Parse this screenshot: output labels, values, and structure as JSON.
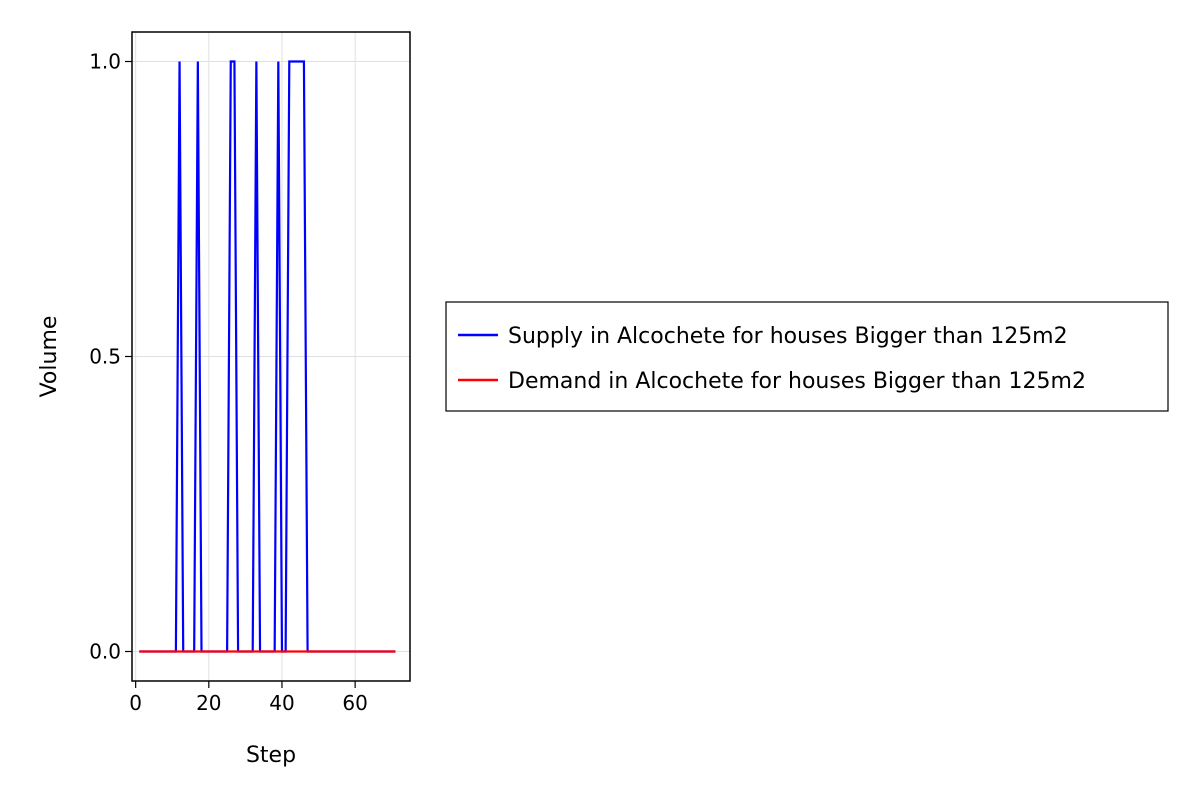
{
  "chart_data": {
    "type": "line",
    "title": "",
    "xlabel": "Step",
    "ylabel": "Volume",
    "xlim": [
      -1,
      75
    ],
    "ylim": [
      -0.05,
      1.05
    ],
    "x_ticks": [
      {
        "value": 0,
        "label": "0"
      },
      {
        "value": 20,
        "label": "20"
      },
      {
        "value": 40,
        "label": "40"
      },
      {
        "value": 60,
        "label": "60"
      }
    ],
    "y_ticks": [
      {
        "value": 0,
        "label": "0.0"
      },
      {
        "value": 0.5,
        "label": "0.5"
      },
      {
        "value": 1,
        "label": "1.0"
      }
    ],
    "grid": true,
    "legend_position": "right",
    "series": [
      {
        "name": "Supply in Alcochete for houses Bigger than 125m2",
        "color": "#0000ff",
        "x": [
          1,
          2,
          3,
          4,
          5,
          6,
          7,
          8,
          9,
          10,
          11,
          12,
          13,
          14,
          15,
          16,
          17,
          18,
          19,
          20,
          21,
          22,
          23,
          24,
          25,
          26,
          27,
          28,
          29,
          30,
          31,
          32,
          33,
          34,
          35,
          36,
          37,
          38,
          39,
          40,
          41,
          42,
          43,
          44,
          45,
          46,
          47,
          48,
          49,
          50,
          51,
          52,
          53,
          54,
          55,
          56,
          57,
          58,
          59,
          60,
          61,
          62,
          63,
          64,
          65,
          66,
          67,
          68,
          69,
          70,
          71
        ],
        "y": [
          0,
          0,
          0,
          0,
          0,
          0,
          0,
          0,
          0,
          0,
          0,
          1,
          0,
          0,
          0,
          0,
          1,
          0,
          0,
          0,
          0,
          0,
          0,
          0,
          0,
          1,
          1,
          0,
          0,
          0,
          0,
          0,
          1,
          0,
          0,
          0,
          0,
          0,
          1,
          0,
          0,
          1,
          1,
          1,
          1,
          1,
          0,
          0,
          0,
          0,
          0,
          0,
          0,
          0,
          0,
          0,
          0,
          0,
          0,
          0,
          0,
          0,
          0,
          0,
          0,
          0,
          0,
          0,
          0,
          0,
          0
        ]
      },
      {
        "name": "Demand in Alcochete for houses Bigger than 125m2",
        "color": "#ff0000",
        "x": [
          1,
          2,
          3,
          4,
          5,
          6,
          7,
          8,
          9,
          10,
          11,
          12,
          13,
          14,
          15,
          16,
          17,
          18,
          19,
          20,
          21,
          22,
          23,
          24,
          25,
          26,
          27,
          28,
          29,
          30,
          31,
          32,
          33,
          34,
          35,
          36,
          37,
          38,
          39,
          40,
          41,
          42,
          43,
          44,
          45,
          46,
          47,
          48,
          49,
          50,
          51,
          52,
          53,
          54,
          55,
          56,
          57,
          58,
          59,
          60,
          61,
          62,
          63,
          64,
          65,
          66,
          67,
          68,
          69,
          70,
          71
        ],
        "y": [
          0,
          0,
          0,
          0,
          0,
          0,
          0,
          0,
          0,
          0,
          0,
          0,
          0,
          0,
          0,
          0,
          0,
          0,
          0,
          0,
          0,
          0,
          0,
          0,
          0,
          0,
          0,
          0,
          0,
          0,
          0,
          0,
          0,
          0,
          0,
          0,
          0,
          0,
          0,
          0,
          0,
          0,
          0,
          0,
          0,
          0,
          0,
          0,
          0,
          0,
          0,
          0,
          0,
          0,
          0,
          0,
          0,
          0,
          0,
          0,
          0,
          0,
          0,
          0,
          0,
          0,
          0,
          0,
          0,
          0,
          0
        ]
      }
    ]
  }
}
